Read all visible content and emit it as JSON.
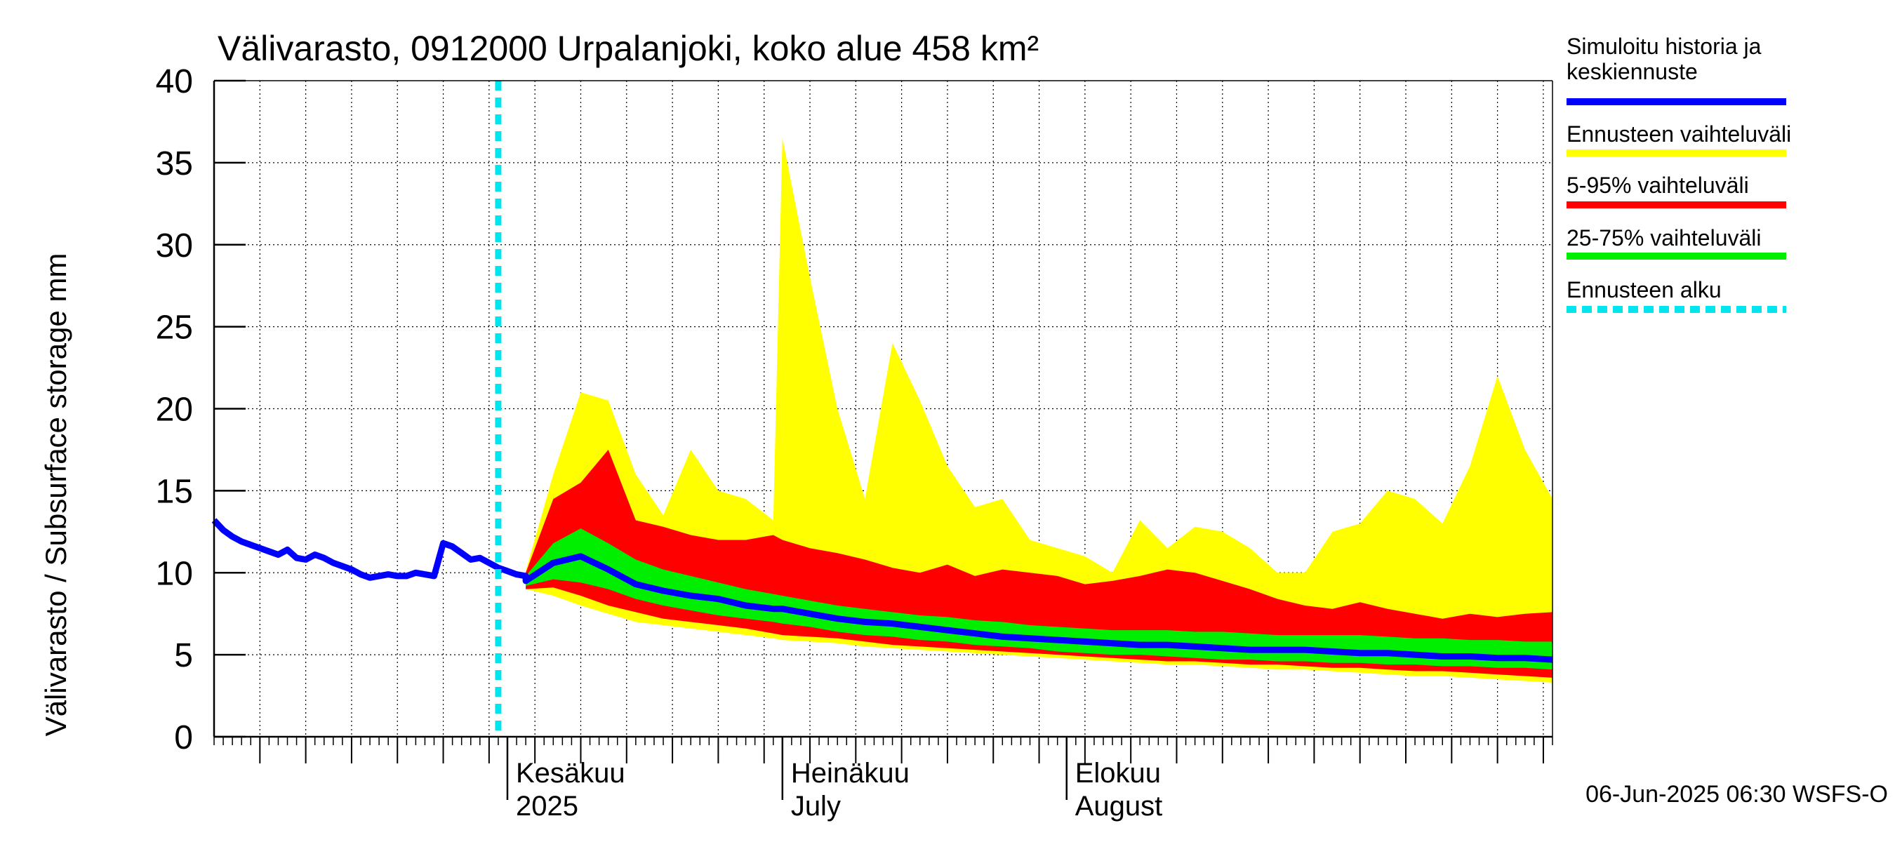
{
  "chart_data": {
    "type": "area",
    "title": "Välivarasto, 0912000 Urpalanjoki, koko alue 458 km²",
    "ylabel": "Välivarasto / Subsurface storage  mm",
    "xlabel": "",
    "ylim": [
      0,
      40
    ],
    "y_ticks": [
      "0",
      "5",
      "10",
      "15",
      "20",
      "25",
      "30",
      "35",
      "40"
    ],
    "x_range": [
      "2025-04-30",
      "2025-09-23"
    ],
    "x_month_labels": [
      {
        "date": "2025-06-01",
        "line1": "Kesäkuu",
        "line2": "2025"
      },
      {
        "date": "2025-07-01",
        "line1": "Heinäkuu",
        "line2": "July"
      },
      {
        "date": "2025-08-01",
        "line1": "Elokuu",
        "line2": "August"
      }
    ],
    "grid": true,
    "legend_position": "right",
    "legend": [
      {
        "label_line1": "Simuloitu historia ja",
        "label_line2": "keskiennuste",
        "color": "#0000ff",
        "style": "solid"
      },
      {
        "label_line1": "Ennusteen vaihteluväli",
        "label_line2": "",
        "color": "#ffff00",
        "style": "solid"
      },
      {
        "label_line1": "5-95% vaihteluväli",
        "label_line2": "",
        "color": "#ff0000",
        "style": "solid"
      },
      {
        "label_line1": "25-75% vaihteluväli",
        "label_line2": "",
        "color": "#00ee00",
        "style": "solid"
      },
      {
        "label_line1": "Ennusteen alku",
        "label_line2": "",
        "color": "#00e5ee",
        "style": "dashed"
      }
    ],
    "forecast_start": "2025-05-31",
    "footer": "06-Jun-2025 06:30 WSFS-O",
    "history": {
      "x": [
        "2025-04-30",
        "2025-05-01",
        "2025-05-02",
        "2025-05-03",
        "2025-05-04",
        "2025-05-05",
        "2025-05-06",
        "2025-05-07",
        "2025-05-08",
        "2025-05-09",
        "2025-05-10",
        "2025-05-11",
        "2025-05-12",
        "2025-05-13",
        "2025-05-14",
        "2025-05-15",
        "2025-05-16",
        "2025-05-17",
        "2025-05-18",
        "2025-05-19",
        "2025-05-20",
        "2025-05-21",
        "2025-05-22",
        "2025-05-23",
        "2025-05-24",
        "2025-05-25",
        "2025-05-26",
        "2025-05-27",
        "2025-05-28",
        "2025-05-29",
        "2025-05-30",
        "2025-05-31",
        "2025-06-01",
        "2025-06-02",
        "2025-06-03"
      ],
      "y": [
        13.2,
        12.6,
        12.2,
        11.9,
        11.7,
        11.5,
        11.3,
        11.1,
        11.4,
        10.9,
        10.8,
        11.1,
        10.9,
        10.6,
        10.4,
        10.2,
        9.9,
        9.7,
        9.8,
        9.9,
        9.8,
        9.8,
        10.0,
        9.9,
        9.8,
        11.8,
        11.6,
        11.2,
        10.8,
        10.9,
        10.6,
        10.3,
        10.1,
        9.9,
        9.8
      ]
    },
    "forecast": {
      "x": [
        "2025-06-03",
        "2025-06-06",
        "2025-06-09",
        "2025-06-12",
        "2025-06-15",
        "2025-06-18",
        "2025-06-21",
        "2025-06-24",
        "2025-06-27",
        "2025-06-30",
        "2025-07-01",
        "2025-07-04",
        "2025-07-07",
        "2025-07-10",
        "2025-07-13",
        "2025-07-16",
        "2025-07-19",
        "2025-07-22",
        "2025-07-25",
        "2025-07-28",
        "2025-07-31",
        "2025-08-03",
        "2025-08-06",
        "2025-08-09",
        "2025-08-12",
        "2025-08-15",
        "2025-08-18",
        "2025-08-21",
        "2025-08-24",
        "2025-08-27",
        "2025-08-30",
        "2025-09-02",
        "2025-09-05",
        "2025-09-08",
        "2025-09-11",
        "2025-09-14",
        "2025-09-17",
        "2025-09-20",
        "2025-09-23"
      ],
      "mean": [
        9.5,
        10.6,
        11.0,
        10.2,
        9.3,
        8.9,
        8.6,
        8.4,
        8.0,
        7.8,
        7.8,
        7.5,
        7.2,
        7.0,
        6.9,
        6.7,
        6.5,
        6.3,
        6.1,
        6.0,
        5.9,
        5.8,
        5.7,
        5.6,
        5.6,
        5.5,
        5.4,
        5.3,
        5.3,
        5.3,
        5.2,
        5.1,
        5.1,
        5.0,
        4.9,
        4.9,
        4.8,
        4.8,
        4.7
      ],
      "p25": [
        9.2,
        9.6,
        9.4,
        9.0,
        8.4,
        8.0,
        7.7,
        7.4,
        7.2,
        7.0,
        6.9,
        6.7,
        6.4,
        6.2,
        6.1,
        5.9,
        5.8,
        5.6,
        5.5,
        5.4,
        5.2,
        5.1,
        5.0,
        5.0,
        4.9,
        4.8,
        4.7,
        4.7,
        4.6,
        4.6,
        4.5,
        4.5,
        4.4,
        4.4,
        4.3,
        4.3,
        4.2,
        4.2,
        4.1
      ],
      "p75": [
        9.8,
        11.8,
        12.7,
        11.8,
        10.8,
        10.2,
        9.8,
        9.4,
        9.0,
        8.7,
        8.6,
        8.3,
        8.0,
        7.8,
        7.6,
        7.4,
        7.3,
        7.1,
        7.0,
        6.8,
        6.7,
        6.6,
        6.5,
        6.5,
        6.5,
        6.4,
        6.4,
        6.3,
        6.2,
        6.2,
        6.2,
        6.2,
        6.1,
        6.0,
        6.0,
        5.9,
        5.9,
        5.8,
        5.8
      ],
      "p5": [
        9.0,
        9.1,
        8.6,
        8.0,
        7.6,
        7.2,
        7.0,
        6.8,
        6.6,
        6.3,
        6.2,
        6.1,
        6.0,
        5.8,
        5.6,
        5.5,
        5.4,
        5.3,
        5.2,
        5.1,
        5.0,
        4.9,
        4.8,
        4.7,
        4.6,
        4.6,
        4.5,
        4.4,
        4.4,
        4.3,
        4.2,
        4.2,
        4.1,
        4.0,
        4.0,
        3.9,
        3.8,
        3.7,
        3.6
      ],
      "p95": [
        10.0,
        14.5,
        15.5,
        17.5,
        13.2,
        12.8,
        12.3,
        12.0,
        12.0,
        12.3,
        12.0,
        11.5,
        11.2,
        10.8,
        10.3,
        10.0,
        10.5,
        9.8,
        10.2,
        10.0,
        9.8,
        9.3,
        9.5,
        9.8,
        10.2,
        10.0,
        9.5,
        9.0,
        8.4,
        8.0,
        7.8,
        8.2,
        7.8,
        7.5,
        7.2,
        7.5,
        7.3,
        7.5,
        7.6
      ],
      "min": [
        9.0,
        8.6,
        8.0,
        7.5,
        7.0,
        6.8,
        6.6,
        6.4,
        6.2,
        6.0,
        5.9,
        5.8,
        5.7,
        5.5,
        5.4,
        5.3,
        5.2,
        5.1,
        5.0,
        4.9,
        4.8,
        4.7,
        4.6,
        4.5,
        4.4,
        4.4,
        4.3,
        4.2,
        4.1,
        4.1,
        4.0,
        3.9,
        3.8,
        3.7,
        3.7,
        3.6,
        3.5,
        3.4,
        3.3
      ],
      "max": [
        10.1,
        16.0,
        21.0,
        20.5,
        16.0,
        13.5,
        17.5,
        15.0,
        14.5,
        13.2,
        36.5,
        28.0,
        20.0,
        14.5,
        24.0,
        20.5,
        16.5,
        14.0,
        14.5,
        12.0,
        11.5,
        11.0,
        10.0,
        13.2,
        11.5,
        12.8,
        12.5,
        11.5,
        10.0,
        10.0,
        12.5,
        13.0,
        15.0,
        14.5,
        13.0,
        16.5,
        22.0,
        17.5,
        14.5
      ]
    }
  }
}
